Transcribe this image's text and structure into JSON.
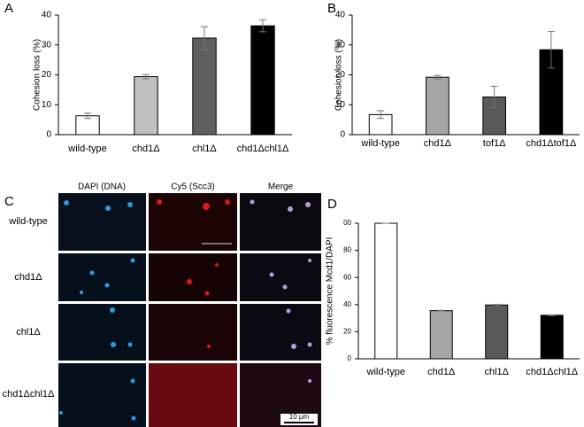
{
  "panel_labels": [
    "A",
    "B",
    "C",
    "D"
  ],
  "chart_data": [
    {
      "type": "bar",
      "y_label": "Cohesion loss (%)",
      "categories": [
        "wild-type",
        "chd1Δ",
        "chl1Δ",
        "chd1Δchl1Δ"
      ],
      "values": [
        6.3,
        19.4,
        32.3,
        36.4
      ],
      "errors": [
        0.9,
        0.7,
        3.8,
        2.0
      ],
      "colors": [
        "#ffffff",
        "#c0c0c0",
        "#606060",
        "#000000"
      ],
      "ylim": [
        0,
        40
      ],
      "yticks": [
        0,
        10,
        20,
        30,
        40
      ]
    },
    {
      "type": "bar",
      "y_label": "Cohesion loss (%)",
      "categories": [
        "wild-type",
        "chd1Δ",
        "tof1Δ",
        "chd1Δtof1Δ"
      ],
      "values": [
        6.7,
        19.2,
        12.6,
        28.4
      ],
      "errors": [
        1.3,
        0.6,
        3.6,
        6.1
      ],
      "colors": [
        "#ffffff",
        "#a6a6a6",
        "#595959",
        "#000000"
      ],
      "ylim": [
        0,
        40
      ],
      "yticks": [
        0,
        10,
        20,
        30,
        40
      ]
    },
    {
      "type": "bar",
      "y_label": "% fluorescence Mcd1/DAPI",
      "categories": [
        "wild-type",
        "chd1Δ",
        "chl1Δ",
        "chd1Δchl1Δ"
      ],
      "values": [
        100,
        35.5,
        39.7,
        32.1
      ],
      "errors": [
        0,
        0.3,
        0.4,
        0.3
      ],
      "colors": [
        "#ffffff",
        "#a6a6a6",
        "#595959",
        "#000000"
      ],
      "ylim": [
        0,
        100
      ],
      "yticks": [
        0,
        20,
        40,
        60,
        80,
        {
          "value": 100,
          "label": "00"
        }
      ]
    }
  ],
  "panel_c": {
    "columns": [
      "DAPI (DNA)",
      "Cy5 (Scc3)",
      "Merge"
    ],
    "rows": [
      "wild-type",
      "chd1Δ",
      "chl1Δ",
      "chd1Δchl1Δ"
    ],
    "scale_bar": "10 µm"
  }
}
